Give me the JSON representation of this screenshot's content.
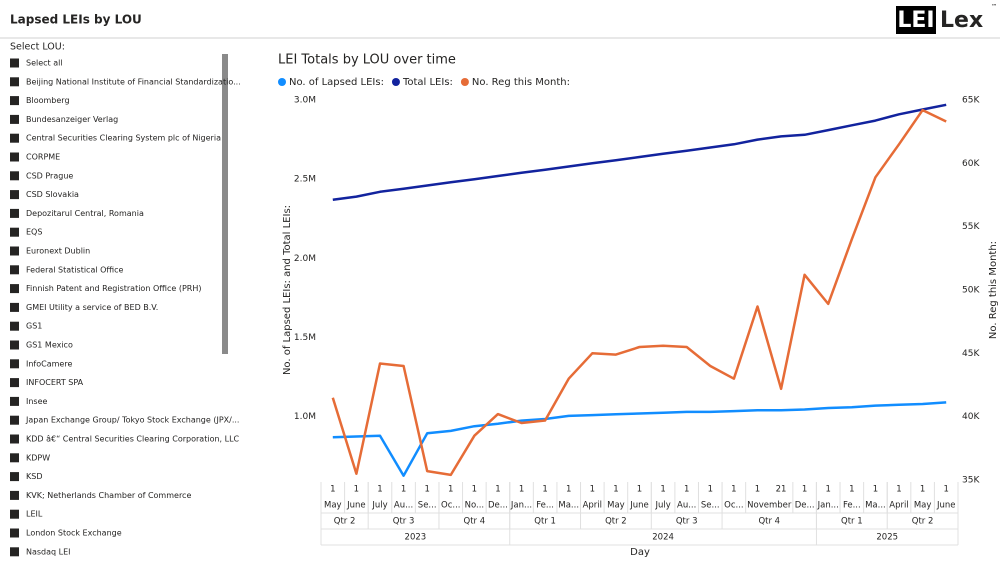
{
  "header": {
    "title": "Lapsed LEIs by LOU",
    "logo": {
      "left": "LEI",
      "right": "Lex",
      "mark": "™"
    }
  },
  "slicer": {
    "title": "Select LOU:",
    "items": [
      "Select all",
      "Beijing National Institute of Financial Standardizatio...",
      "Bloomberg",
      "Bundesanzeiger Verlag",
      "Central Securities Clearing System plc of Nigeria",
      "CORPME",
      "CSD Prague",
      "CSD Slovakia",
      "Depozitarul Central, Romania",
      "EQS",
      "Euronext Dublin",
      "Federal Statistical Office",
      "Finnish Patent and Registration Office (PRH)",
      "GMEI Utility a service of BED B.V.",
      "GS1",
      "GS1 Mexico",
      "InfoCamere",
      "INFOCERT SPA",
      "Insee",
      "Japan Exchange Group/ Tokyo Stock Exchange (JPX/...",
      "KDD â€“ Central Securities Clearing Corporation, LLC",
      "KDPW",
      "KSD",
      "KVK; Netherlands Chamber of Commerce",
      "LEIL",
      "London Stock Exchange",
      "Nasdaq LEI"
    ]
  },
  "chart_data": {
    "type": "line",
    "title": "LEI Totals by LOU over time",
    "x_label": "Day",
    "y_label": "No. of Lapsed LEIs: and Total LEIs:",
    "y2_label": "No. Reg this Month:",
    "categories": [
      "1",
      "1",
      "1",
      "1",
      "1",
      "1",
      "1",
      "1",
      "1",
      "1",
      "1",
      "1",
      "1",
      "1",
      "1",
      "1",
      "1",
      "1",
      "1",
      "21",
      "1",
      "1",
      "1",
      "1",
      "1",
      "1",
      "1"
    ],
    "months": [
      {
        "label": "May",
        "span": 1
      },
      {
        "label": "June",
        "span": 1
      },
      {
        "label": "July",
        "span": 1
      },
      {
        "label": "Au...",
        "span": 1
      },
      {
        "label": "Se...",
        "span": 1
      },
      {
        "label": "Oc...",
        "span": 1
      },
      {
        "label": "No...",
        "span": 1
      },
      {
        "label": "De...",
        "span": 1
      },
      {
        "label": "Jan...",
        "span": 1
      },
      {
        "label": "Fe...",
        "span": 1
      },
      {
        "label": "Ma...",
        "span": 1
      },
      {
        "label": "April",
        "span": 1
      },
      {
        "label": "May",
        "span": 1
      },
      {
        "label": "June",
        "span": 1
      },
      {
        "label": "July",
        "span": 1
      },
      {
        "label": "Au...",
        "span": 1
      },
      {
        "label": "Se...",
        "span": 1
      },
      {
        "label": "Oc...",
        "span": 1
      },
      {
        "label": "November",
        "span": 2
      },
      {
        "label": "De...",
        "span": 1
      },
      {
        "label": "Jan...",
        "span": 1
      },
      {
        "label": "Fe...",
        "span": 1
      },
      {
        "label": "Ma...",
        "span": 1
      },
      {
        "label": "April",
        "span": 1
      },
      {
        "label": "May",
        "span": 1
      },
      {
        "label": "June",
        "span": 1
      }
    ],
    "quarters": [
      {
        "label": "Qtr 2",
        "span": 2
      },
      {
        "label": "Qtr 3",
        "span": 3
      },
      {
        "label": "Qtr 4",
        "span": 3
      },
      {
        "label": "Qtr 1",
        "span": 3
      },
      {
        "label": "Qtr 2",
        "span": 3
      },
      {
        "label": "Qtr 3",
        "span": 3
      },
      {
        "label": "Qtr 4",
        "span": 4
      },
      {
        "label": "Qtr 1",
        "span": 3
      },
      {
        "label": "Qtr 2",
        "span": 3
      }
    ],
    "years": [
      {
        "label": "2023",
        "span": 8
      },
      {
        "label": "2024",
        "span": 13
      },
      {
        "label": "2025",
        "span": 6
      }
    ],
    "series": [
      {
        "name": "No. of Lapsed LEIs:",
        "color": "#118DFF",
        "values": [
          870000,
          875000,
          880000,
          627000,
          895000,
          910000,
          940000,
          955000,
          975000,
          985000,
          1005000,
          1010000,
          1015000,
          1020000,
          1025000,
          1030000,
          1030000,
          1035000,
          1040000,
          1040000,
          1045000,
          1055000,
          1060000,
          1070000,
          1075000,
          1080000,
          1090000
        ]
      },
      {
        "name": "Total LEIs:",
        "color": "#12239E",
        "values": [
          2370000,
          2390000,
          2420000,
          2440000,
          2460000,
          2480000,
          2500000,
          2520000,
          2540000,
          2560000,
          2580000,
          2600000,
          2620000,
          2640000,
          2660000,
          2680000,
          2700000,
          2720000,
          2750000,
          2770000,
          2780000,
          2810000,
          2840000,
          2870000,
          2910000,
          2940000,
          2970000
        ]
      },
      {
        "name": "No. Reg this Month:",
        "color": "#E66C37",
        "axis": "y2",
        "values": [
          41500,
          35500,
          44200,
          44000,
          35700,
          35400,
          38500,
          40200,
          39500,
          39700,
          43000,
          45000,
          44900,
          45500,
          45600,
          45500,
          44000,
          43000,
          48700,
          42200,
          51200,
          48900,
          54000,
          58900,
          61500,
          64200,
          63300
        ]
      }
    ],
    "ylim": [
      600000,
      3000000
    ],
    "yticks": [
      {
        "value": 1000000,
        "label": "1.0M"
      },
      {
        "value": 1500000,
        "label": "1.5M"
      },
      {
        "value": 2000000,
        "label": "2.0M"
      },
      {
        "value": 2500000,
        "label": "2.5M"
      },
      {
        "value": 3000000,
        "label": "3.0M"
      }
    ],
    "y2lim": [
      35000,
      65000
    ],
    "y2ticks": [
      {
        "value": 35000,
        "label": "35K"
      },
      {
        "value": 40000,
        "label": "40K"
      },
      {
        "value": 45000,
        "label": "45K"
      },
      {
        "value": 50000,
        "label": "50K"
      },
      {
        "value": 55000,
        "label": "55K"
      },
      {
        "value": 60000,
        "label": "60K"
      },
      {
        "value": 65000,
        "label": "65K"
      }
    ]
  }
}
